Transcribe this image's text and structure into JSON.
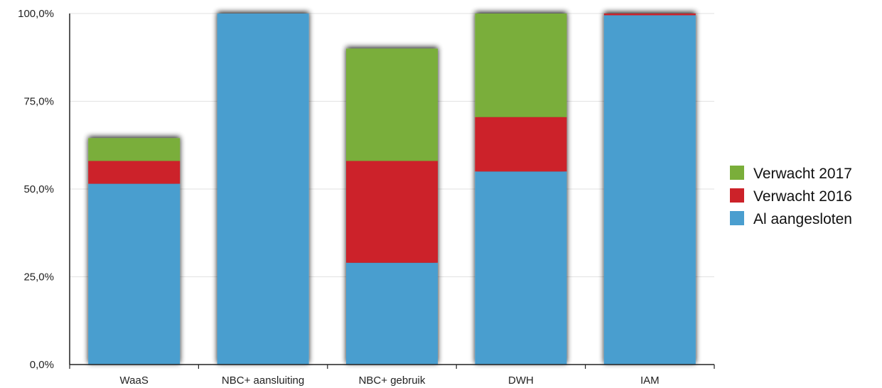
{
  "chart_data": {
    "type": "bar",
    "stacked": true,
    "categories": [
      "WaaS",
      "NBC+ aansluiting",
      "NBC+ gebruik",
      "DWH",
      "IAM"
    ],
    "series": [
      {
        "name": "Al aangesloten",
        "color": "#4a9ecf",
        "values": [
          51.5,
          100.0,
          29.0,
          55.0,
          99.5
        ]
      },
      {
        "name": "Verwacht 2016",
        "color": "#cc2229",
        "values": [
          6.5,
          0.0,
          29.0,
          15.5,
          0.5
        ]
      },
      {
        "name": "Verwacht 2017",
        "color": "#7aae3a",
        "values": [
          6.5,
          0.0,
          32.0,
          29.5,
          0.0
        ]
      }
    ],
    "yticks": [
      "0,0%",
      "25,0%",
      "50,0%",
      "75,0%",
      "100,0%"
    ],
    "ylim": [
      0,
      100
    ],
    "grid": true,
    "legend_position": "right",
    "legend_order": [
      "Verwacht 2017",
      "Verwacht 2016",
      "Al aangesloten"
    ]
  }
}
